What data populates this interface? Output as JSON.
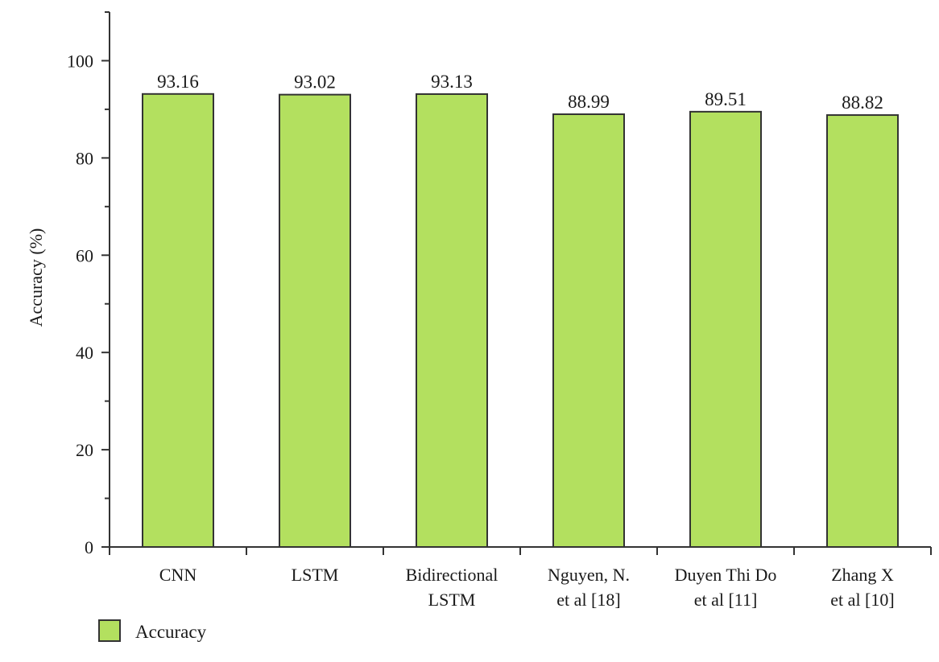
{
  "chart_data": {
    "type": "bar",
    "categories": [
      [
        "CNN"
      ],
      [
        "LSTM"
      ],
      [
        "Bidirectional",
        "LSTM"
      ],
      [
        "Nguyen, N.",
        "et al [18]"
      ],
      [
        "Duyen Thi Do",
        "et al [11]"
      ],
      [
        "Zhang X",
        "et al [10]"
      ]
    ],
    "series": [
      {
        "name": "Accuracy",
        "values": [
          93.16,
          93.02,
          93.13,
          88.99,
          89.51,
          88.82
        ]
      }
    ],
    "value_labels": [
      "93.16",
      "93.02",
      "93.13",
      "88.99",
      "89.51",
      "88.82"
    ],
    "ylabel": "Accuracy (%)",
    "xlabel": "",
    "ylim": [
      0,
      110
    ],
    "yticks": [
      0,
      20,
      40,
      60,
      80,
      100
    ],
    "grid": false,
    "legend_position": "bottom-left",
    "colors": {
      "bar_fill": "#b3e05f",
      "bar_stroke": "#333333",
      "axis": "#333333"
    }
  }
}
